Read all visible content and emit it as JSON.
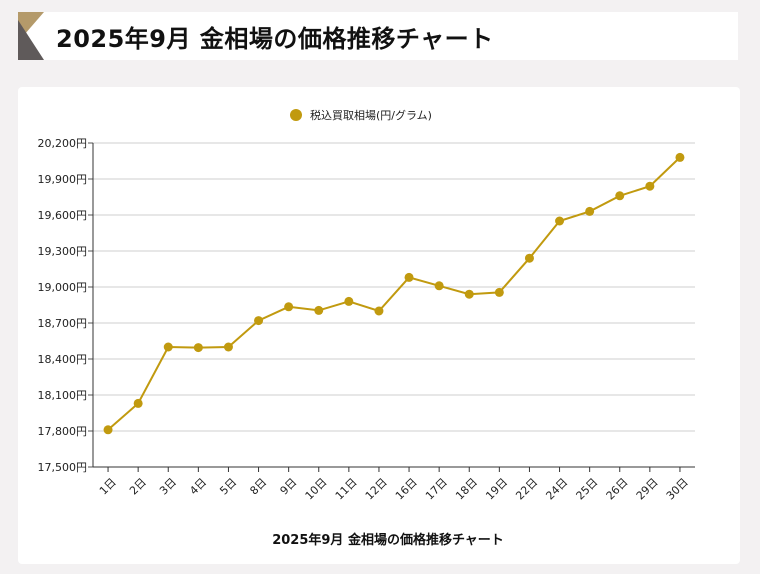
{
  "page": {
    "title": "2025年9月 金相場の価格推移チャート"
  },
  "colors": {
    "series": "#c19a0f",
    "header_mark_gold": "#b49a6a",
    "header_mark_dark": "#5f5a5a"
  },
  "chart_data": {
    "type": "line",
    "title": "2025年9月 金相場の価格推移チャート",
    "xlabel": "",
    "ylabel": "",
    "categories": [
      "1日",
      "2日",
      "3日",
      "4日",
      "5日",
      "8日",
      "9日",
      "10日",
      "11日",
      "12日",
      "16日",
      "17日",
      "18日",
      "19日",
      "22日",
      "24日",
      "25日",
      "26日",
      "29日",
      "30日"
    ],
    "series": [
      {
        "name": "税込買取相場(円/グラム)",
        "values": [
          17810,
          18030,
          18500,
          18495,
          18500,
          18720,
          18835,
          18805,
          18880,
          18800,
          19080,
          19010,
          18940,
          18955,
          19240,
          19550,
          19630,
          19760,
          19840,
          20080
        ]
      }
    ],
    "ylim": [
      17500,
      20200
    ],
    "yticks": [
      "17,500円",
      "17,800円",
      "18,100円",
      "18,400円",
      "18,700円",
      "19,000円",
      "19,300円",
      "19,600円",
      "19,900円",
      "20,200円"
    ],
    "ytick_values": [
      17500,
      17800,
      18100,
      18400,
      18700,
      19000,
      19300,
      19600,
      19900,
      20200
    ],
    "grid": true,
    "legend": "top-center"
  }
}
